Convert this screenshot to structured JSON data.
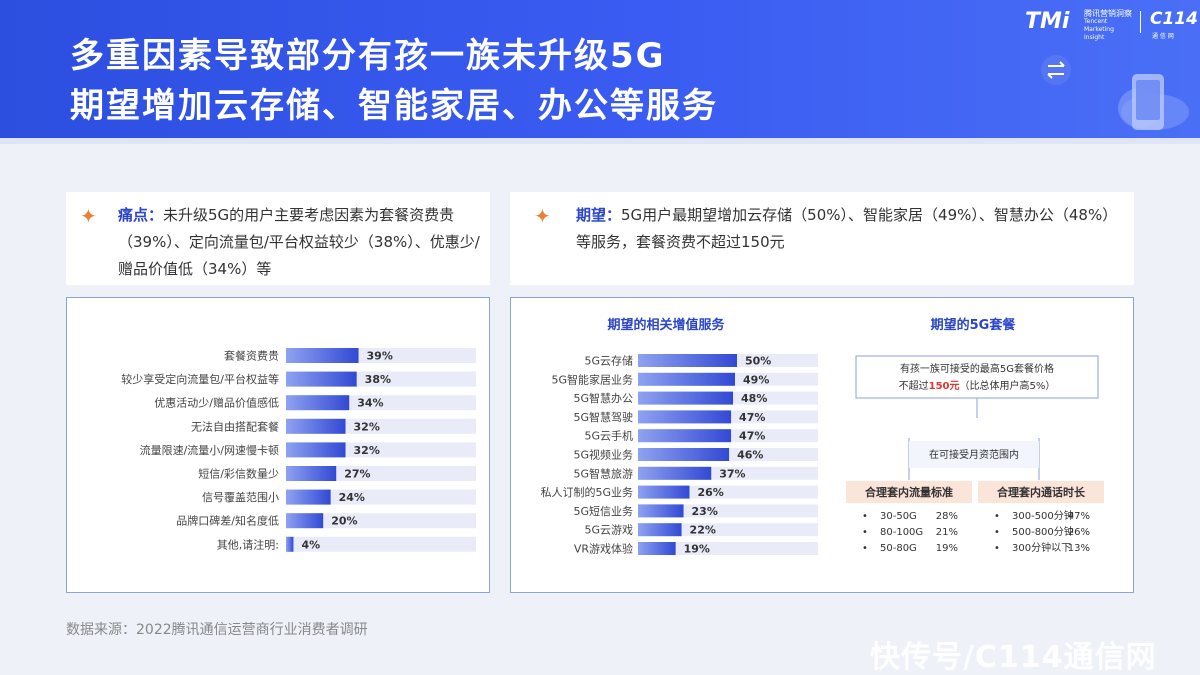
{
  "header": {
    "title_line1": "多重因素导致部分有孩一族未升级5G",
    "title_line2": "期望增加云存储、智能家居、办公等服务",
    "logo_tmi": "TMi",
    "logo_tmi_sub1": "腾讯营销洞察",
    "logo_tmi_sub2": "Tencent Marketing Insight",
    "logo_c114": "C114",
    "logo_c114_sub": "通 信 网"
  },
  "pain_card": {
    "keyword": "痛点：",
    "text": "未升级5G的用户主要考虑因素为套餐资费贵（39%）、定向流量包/平台权益较少（38%）、优惠少/赠品价值低（34%）等"
  },
  "expect_card": {
    "keyword": "期望：",
    "text": "5G用户最期望增加云存储（50%）、智能家居（49%）、智慧办公（48%）等服务，套餐资费不超过150元"
  },
  "chart_data": [
    {
      "type": "bar",
      "orientation": "horizontal",
      "title": "",
      "categories": [
        "套餐资费贵",
        "较少享受定向流量包/平台权益等",
        "优惠活动少/赠品价值感低",
        "无法自由搭配套餐",
        "流量限速/流量小/网速慢卡顿",
        "短信/彩信数量少",
        "信号覆盖范围小",
        "品牌口碑差/知名度低",
        "其他,请注明:"
      ],
      "values": [
        39,
        38,
        34,
        32,
        32,
        27,
        24,
        20,
        4
      ],
      "value_labels": [
        "39%",
        "38%",
        "34%",
        "32%",
        "32%",
        "27%",
        "24%",
        "20%",
        "4%"
      ],
      "xlim": [
        0,
        100
      ],
      "unit": "%",
      "colors": {
        "bar": "#3d55d8",
        "track": "#e9ecf8"
      }
    },
    {
      "type": "bar",
      "orientation": "horizontal",
      "title": "期望的相关增值服务",
      "categories": [
        "5G云存储",
        "5G智能家居业务",
        "5G智慧办公",
        "5G智慧驾驶",
        "5G云手机",
        "5G视频业务",
        "5G智慧旅游",
        "私人订制的5G业务",
        "5G短信业务",
        "5G云游戏",
        "VR游戏体验"
      ],
      "values": [
        50,
        49,
        48,
        47,
        47,
        46,
        37,
        26,
        23,
        22,
        19
      ],
      "value_labels": [
        "50%",
        "49%",
        "48%",
        "47%",
        "47%",
        "46%",
        "37%",
        "26%",
        "23%",
        "22%",
        "19%"
      ],
      "xlim": [
        0,
        100
      ],
      "unit": "%",
      "colors": {
        "bar": "#3d55d8",
        "track": "#e9ecf8"
      }
    },
    {
      "type": "table",
      "title": "期望的5G套餐",
      "top_box": [
        "有孩一族可接受的最高5G套餐价格",
        "不超过150元（比总体用户高5%）"
      ],
      "highlight": "150元",
      "branch_label": "在可接受月资范围内",
      "groups": [
        {
          "header": "合理套内流量标准",
          "rows": [
            [
              "30-50G",
              "28%"
            ],
            [
              "80-100G",
              "21%"
            ],
            [
              "50-80G",
              "19%"
            ]
          ]
        },
        {
          "header": "合理套内通话时长",
          "rows": [
            [
              "300-500分钟",
              "47%"
            ],
            [
              "500-800分钟",
              "26%"
            ],
            [
              "300分钟以下",
              "13%"
            ]
          ]
        }
      ]
    }
  ],
  "source": "数据来源：2022腾讯通信运营商行业消费者调研",
  "watermark": "快传号/C114通信网",
  "colors": {
    "header_blue": "#3355e8",
    "accent_blue": "#2b46c8",
    "star_orange": "#e8813a",
    "highlight_red": "#e0362f",
    "group_header_bg": "#fbe4d8"
  }
}
